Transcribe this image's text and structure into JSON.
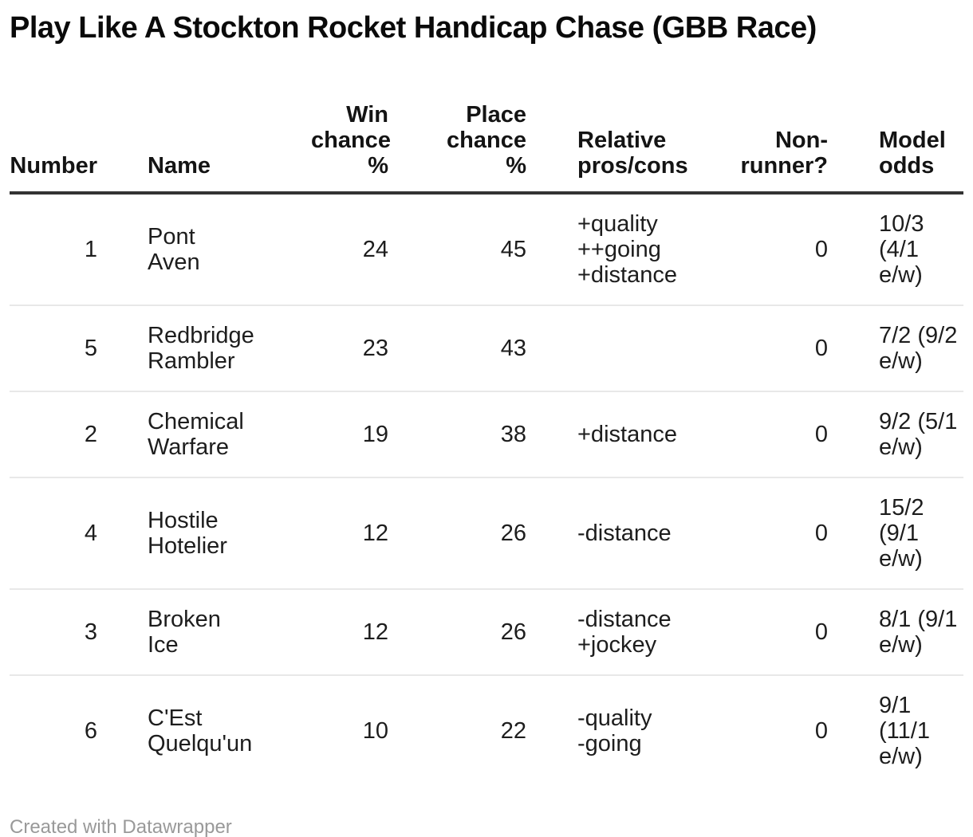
{
  "title": "Play Like A Stockton Rocket Handicap Chase (GBB Race)",
  "table": {
    "headers": [
      {
        "id": "number",
        "label": "Number"
      },
      {
        "id": "name",
        "label": "Name"
      },
      {
        "id": "win",
        "label": "Win\nchance\n%"
      },
      {
        "id": "place",
        "label": "Place\nchance\n%"
      },
      {
        "id": "pros",
        "label": "Relative\npros/cons"
      },
      {
        "id": "nonrunner",
        "label": "Non-\nrunner?"
      },
      {
        "id": "odds",
        "label": "Model\nodds"
      }
    ],
    "rows": [
      {
        "number": "1",
        "name": "Pont\nAven",
        "win": "24",
        "place": "45",
        "pros": "+quality\n++going\n+distance",
        "nonrunner": "0",
        "odds": "10/3\n(4/1\ne/w)"
      },
      {
        "number": "5",
        "name": "Redbridge\nRambler",
        "win": "23",
        "place": "43",
        "pros": "",
        "nonrunner": "0",
        "odds": "7/2 (9/2\ne/w)"
      },
      {
        "number": "2",
        "name": "Chemical\nWarfare",
        "win": "19",
        "place": "38",
        "pros": "+distance",
        "nonrunner": "0",
        "odds": "9/2 (5/1\ne/w)"
      },
      {
        "number": "4",
        "name": "Hostile\nHotelier",
        "win": "12",
        "place": "26",
        "pros": "-distance",
        "nonrunner": "0",
        "odds": "15/2\n(9/1\ne/w)"
      },
      {
        "number": "3",
        "name": "Broken\nIce",
        "win": "12",
        "place": "26",
        "pros": "-distance\n+jockey",
        "nonrunner": "0",
        "odds": "8/1 (9/1\ne/w)"
      },
      {
        "number": "6",
        "name": "C'Est\nQuelqu'un",
        "win": "10",
        "place": "22",
        "pros": "-quality\n-going",
        "nonrunner": "0",
        "odds": "9/1\n(11/1\ne/w)"
      }
    ]
  },
  "footer": {
    "credit": "Created with Datawrapper"
  },
  "colors": {
    "title_text": "#0a0a0a",
    "body_text": "#1d1d1d",
    "header_rule": "#333333",
    "row_divider": "#e8e8e8",
    "footer_text": "#999999"
  },
  "chart_data": {
    "type": "table",
    "title": "Play Like A Stockton Rocket Handicap Chase (GBB Race)",
    "columns": [
      "Number",
      "Name",
      "Win chance %",
      "Place chance %",
      "Relative pros/cons",
      "Non-runner?",
      "Model odds"
    ],
    "rows": [
      [
        1,
        "Pont Aven",
        24,
        45,
        "+quality ++going +distance",
        0,
        "10/3 (4/1 e/w)"
      ],
      [
        5,
        "Redbridge Rambler",
        23,
        43,
        "",
        0,
        "7/2 (9/2 e/w)"
      ],
      [
        2,
        "Chemical Warfare",
        19,
        38,
        "+distance",
        0,
        "9/2 (5/1 e/w)"
      ],
      [
        4,
        "Hostile Hotelier",
        12,
        26,
        "-distance",
        0,
        "15/2 (9/1 e/w)"
      ],
      [
        3,
        "Broken Ice",
        12,
        26,
        "-distance +jockey",
        0,
        "8/1 (9/1 e/w)"
      ],
      [
        6,
        "C'Est Quelqu'un",
        10,
        22,
        "-quality -going",
        0,
        "9/1 (11/1 e/w)"
      ]
    ],
    "column_alignments": [
      "right",
      "left",
      "right",
      "right",
      "left",
      "right",
      "left"
    ],
    "grid": "horizontal-row-dividers",
    "legend_position": "none"
  }
}
